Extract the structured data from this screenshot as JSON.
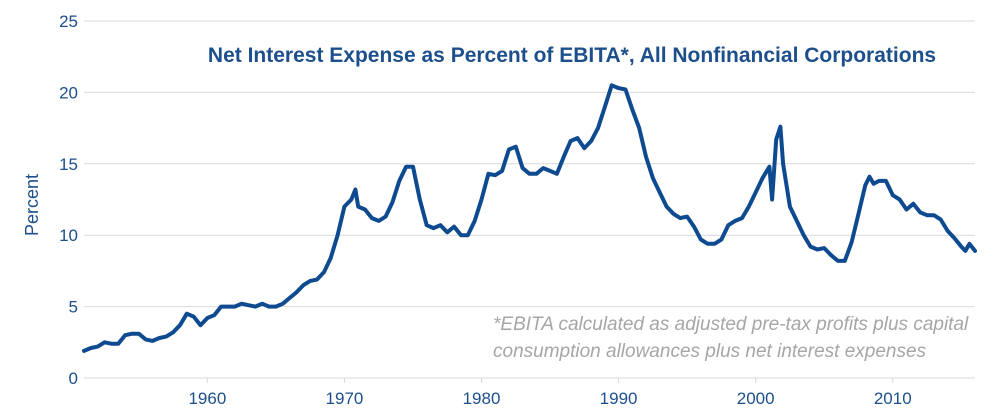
{
  "colors": {
    "series": "#0e4a8f",
    "text": "#1c4f8c",
    "grid": "#d9d9d9",
    "annotation": "#a6a6a6"
  },
  "chart_data": {
    "type": "line",
    "title": "Net Interest Expense as Percent of EBITA*, All Nonfinancial Corporations",
    "xlabel": "",
    "ylabel": "Percent",
    "xlim": [
      1951,
      2016
    ],
    "ylim": [
      0,
      25
    ],
    "xticks": [
      1960,
      1970,
      1980,
      1990,
      2000,
      2010
    ],
    "yticks": [
      0,
      5,
      10,
      15,
      20,
      25
    ],
    "grid": "horizontal",
    "annotation": {
      "line1": "*EBITA calculated as adjusted pre-tax profits plus capital",
      "line2": "consumption allowances plus net interest expenses"
    },
    "series": [
      {
        "name": "Net Interest Expense as Percent of EBITA",
        "x": [
          1951.0,
          1951.5,
          1952.0,
          1952.5,
          1953.0,
          1953.5,
          1954.0,
          1954.5,
          1955.0,
          1955.5,
          1956.0,
          1956.5,
          1957.0,
          1957.5,
          1958.0,
          1958.5,
          1959.0,
          1959.5,
          1960.0,
          1960.5,
          1961.0,
          1961.5,
          1962.0,
          1962.5,
          1963.0,
          1963.5,
          1964.0,
          1964.5,
          1965.0,
          1965.5,
          1966.0,
          1966.5,
          1967.0,
          1967.5,
          1968.0,
          1968.5,
          1969.0,
          1969.5,
          1970.0,
          1970.5,
          1970.8,
          1971.0,
          1971.5,
          1972.0,
          1972.5,
          1973.0,
          1973.5,
          1974.0,
          1974.5,
          1975.0,
          1975.5,
          1976.0,
          1976.5,
          1977.0,
          1977.5,
          1978.0,
          1978.5,
          1979.0,
          1979.5,
          1980.0,
          1980.5,
          1981.0,
          1981.5,
          1982.0,
          1982.5,
          1983.0,
          1983.5,
          1984.0,
          1984.5,
          1985.0,
          1985.5,
          1986.0,
          1986.5,
          1987.0,
          1987.5,
          1988.0,
          1988.5,
          1989.0,
          1989.5,
          1990.0,
          1990.5,
          1991.0,
          1991.5,
          1992.0,
          1992.5,
          1993.0,
          1993.5,
          1994.0,
          1994.5,
          1995.0,
          1995.5,
          1996.0,
          1996.5,
          1997.0,
          1997.5,
          1998.0,
          1998.5,
          1999.0,
          1999.5,
          2000.0,
          2000.5,
          2001.0,
          2001.2,
          2001.5,
          2001.8,
          2002.0,
          2002.5,
          2003.0,
          2003.5,
          2004.0,
          2004.5,
          2005.0,
          2005.5,
          2006.0,
          2006.5,
          2007.0,
          2007.5,
          2008.0,
          2008.3,
          2008.6,
          2009.0,
          2009.5,
          2010.0,
          2010.5,
          2011.0,
          2011.5,
          2012.0,
          2012.5,
          2013.0,
          2013.5,
          2014.0,
          2014.5,
          2015.0,
          2015.3,
          2015.6,
          2016.0
        ],
        "values": [
          1.9,
          2.1,
          2.2,
          2.5,
          2.4,
          2.4,
          3.0,
          3.1,
          3.1,
          2.7,
          2.6,
          2.8,
          2.9,
          3.2,
          3.7,
          4.5,
          4.3,
          3.7,
          4.2,
          4.4,
          5.0,
          5.0,
          5.0,
          5.2,
          5.1,
          5.0,
          5.2,
          5.0,
          5.0,
          5.2,
          5.6,
          6.0,
          6.5,
          6.8,
          6.9,
          7.4,
          8.4,
          10.0,
          12.0,
          12.5,
          13.2,
          12.0,
          11.8,
          11.2,
          11.0,
          11.3,
          12.3,
          13.8,
          14.8,
          14.8,
          12.5,
          10.7,
          10.5,
          10.7,
          10.2,
          10.6,
          10.0,
          10.0,
          11.0,
          12.5,
          14.3,
          14.2,
          14.5,
          16.0,
          16.2,
          14.7,
          14.3,
          14.3,
          14.7,
          14.5,
          14.3,
          15.5,
          16.6,
          16.8,
          16.1,
          16.6,
          17.5,
          19.0,
          20.5,
          20.3,
          20.2,
          18.8,
          17.5,
          15.5,
          14.0,
          13.0,
          12.0,
          11.5,
          11.2,
          11.3,
          10.6,
          9.7,
          9.4,
          9.4,
          9.7,
          10.7,
          11.0,
          11.2,
          12.0,
          13.0,
          14.0,
          14.8,
          12.5,
          16.7,
          17.6,
          15.0,
          12.0,
          11.0,
          10.0,
          9.2,
          9.0,
          9.1,
          8.6,
          8.2,
          8.2,
          9.5,
          11.5,
          13.5,
          14.1,
          13.6,
          13.8,
          13.8,
          12.8,
          12.5,
          11.8,
          12.2,
          11.6,
          11.4,
          11.4,
          11.1,
          10.3,
          9.8,
          9.2,
          8.9,
          9.4,
          8.9
        ]
      }
    ]
  }
}
